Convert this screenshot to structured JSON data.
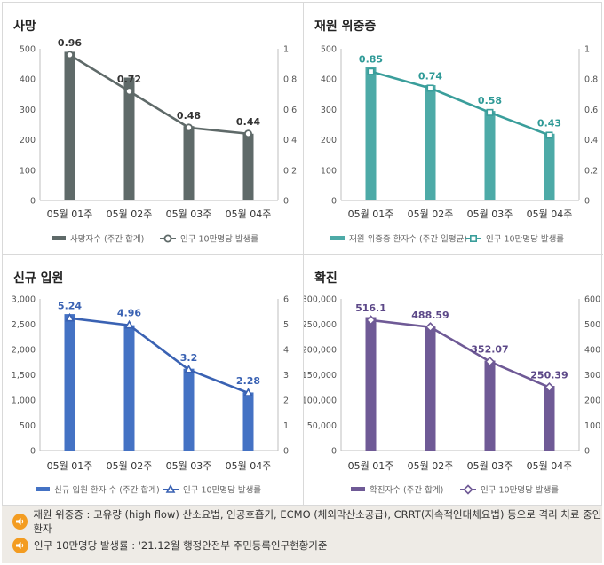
{
  "chart_data": [
    {
      "type": "bar+line",
      "title": "사망",
      "categories": [
        "05월 01주",
        "05월 02주",
        "05월 03주",
        "05월 04주"
      ],
      "bar": {
        "name": "사망자수 (주간 합계)",
        "values": [
          490,
          405,
          245,
          220
        ],
        "color": "#5f6a69"
      },
      "line": {
        "name": "인구 10만명당 발생률",
        "values": [
          0.96,
          0.72,
          0.48,
          0.44
        ],
        "labels": [
          "0.96",
          "0.72",
          "0.48",
          "0.44"
        ],
        "color": "#5f6a69",
        "marker": "circle",
        "label_color": "#333333"
      },
      "y_left": {
        "min": 0,
        "max": 500,
        "step": 100,
        "ticks": [
          "0",
          "100",
          "200",
          "300",
          "400",
          "500"
        ]
      },
      "y_right": {
        "min": 0,
        "max": 1,
        "step": 0.2,
        "ticks": [
          "0",
          "0.2",
          "0.4",
          "0.6",
          "0.8",
          "1"
        ]
      }
    },
    {
      "type": "bar+line",
      "title": "재원 위중증",
      "categories": [
        "05월 01주",
        "05월 02주",
        "05월 03주",
        "05월 04주"
      ],
      "bar": {
        "name": "재원 위중증 환자수 (주간 일평균)",
        "values": [
          440,
          380,
          295,
          220
        ],
        "color": "#4daaa7"
      },
      "line": {
        "name": "인구 10만명당 발생률",
        "values": [
          0.85,
          0.74,
          0.58,
          0.43
        ],
        "labels": [
          "0.85",
          "0.74",
          "0.58",
          "0.43"
        ],
        "color": "#3a9e9b",
        "marker": "square",
        "label_color": "#2f9a97"
      },
      "y_left": {
        "min": 0,
        "max": 500,
        "step": 100,
        "ticks": [
          "0",
          "100",
          "200",
          "300",
          "400",
          "500"
        ]
      },
      "y_right": {
        "min": 0,
        "max": 1,
        "step": 0.2,
        "ticks": [
          "0",
          "0.2",
          "0.4",
          "0.6",
          "0.8",
          "1"
        ]
      }
    },
    {
      "type": "bar+line",
      "title": "신규 입원",
      "categories": [
        "05월 01주",
        "05월 02주",
        "05월 03주",
        "05월 04주"
      ],
      "bar": {
        "name": "신규 입원 환자 수 (주간 합계)",
        "values": [
          2700,
          2480,
          1620,
          1150
        ],
        "color": "#4472c4"
      },
      "line": {
        "name": "인구 10만명당 발생률",
        "values": [
          5.24,
          4.96,
          3.2,
          2.28
        ],
        "labels": [
          "5.24",
          "4.96",
          "3.2",
          "2.28"
        ],
        "color": "#3a62b3",
        "marker": "triangle",
        "label_color": "#3a62b3"
      },
      "y_left": {
        "min": 0,
        "max": 3000,
        "step": 500,
        "ticks": [
          "0",
          "500",
          "1,000",
          "1,500",
          "2,000",
          "2,500",
          "3,000"
        ]
      },
      "y_right": {
        "min": 0,
        "max": 6,
        "step": 1,
        "ticks": [
          "0",
          "1",
          "2",
          "3",
          "4",
          "5",
          "6"
        ]
      }
    },
    {
      "type": "bar+line",
      "title": "확진",
      "categories": [
        "05월 01주",
        "05월 02주",
        "05월 03주",
        "05월 04주"
      ],
      "bar": {
        "name": "확진자수 (주간 합계)",
        "values": [
          264000,
          245000,
          178000,
          128000
        ],
        "color": "#6f5a96"
      },
      "line": {
        "name": "인구 10만명당 발생률",
        "values": [
          516.1,
          488.59,
          352.07,
          250.39
        ],
        "labels": [
          "516.1",
          "488.59",
          "352.07",
          "250.39"
        ],
        "color": "#6f5a96",
        "marker": "diamond",
        "label_color": "#5c4888"
      },
      "y_left": {
        "min": 0,
        "max": 300000,
        "step": 50000,
        "ticks": [
          "0",
          "50,000",
          "100,000",
          "150,000",
          "200,000",
          "250,000",
          "300,000"
        ]
      },
      "y_right": {
        "min": 0,
        "max": 600,
        "step": 100,
        "ticks": [
          "0",
          "100",
          "200",
          "300",
          "400",
          "500",
          "600"
        ]
      }
    }
  ],
  "notes": [
    "재원 위중증 : 고유량 (high flow) 산소요법, 인공호흡기, ECMO (체외막산소공급), CRRT(지속적인대체요법) 등으로 격리 치료 중인 환자",
    "인구 10만명당 발생률 : '21.12월 행정안전부 주민등록인구현황기준"
  ],
  "note_icon": "speaker-icon",
  "note_icon_color": "#f39c21"
}
